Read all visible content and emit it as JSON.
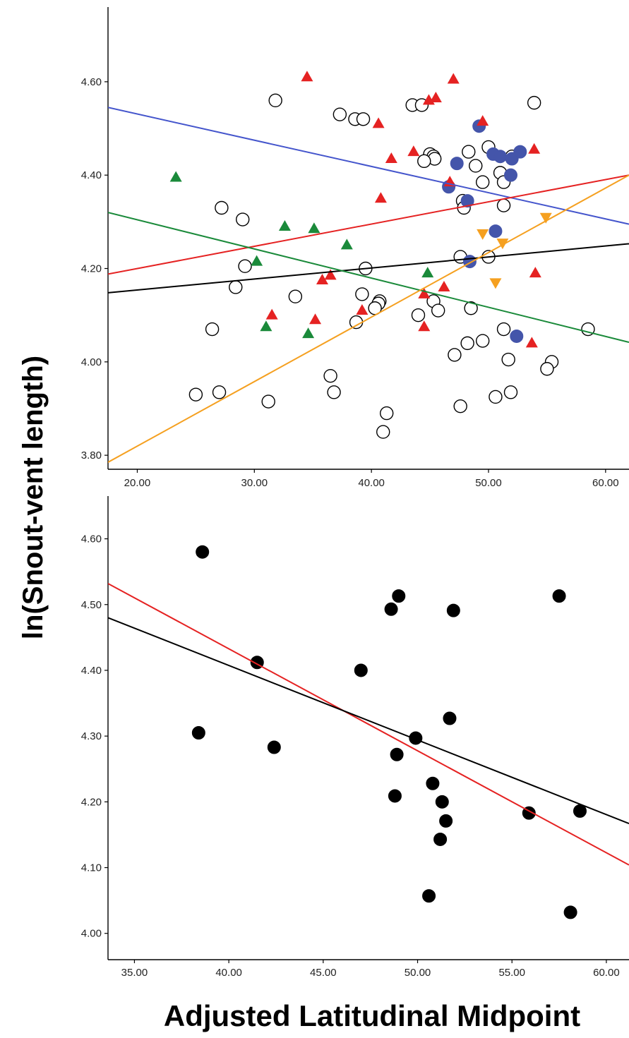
{
  "figure": {
    "ylabel": "ln(Snout-vent length)",
    "xlabel": "Adjusted Latitudinal Midpoint"
  },
  "chart_data": [
    {
      "type": "scatter",
      "title": "",
      "xlabel": "",
      "ylabel": "",
      "xlim": [
        17.5,
        62
      ],
      "ylim": [
        3.77,
        4.76
      ],
      "x_ticks": [
        "20.00",
        "30.00",
        "40.00",
        "50.00",
        "60.00"
      ],
      "y_ticks": [
        "3.80",
        "4.00",
        "4.20",
        "4.40",
        "4.60"
      ],
      "series": [
        {
          "marker": "open-circle",
          "color": "#000000",
          "points": [
            [
              31.8,
              4.56
            ],
            [
              37.3,
              4.53
            ],
            [
              38.6,
              4.52
            ],
            [
              39.3,
              4.52
            ],
            [
              43.5,
              4.55
            ],
            [
              44.3,
              4.55
            ],
            [
              53.9,
              4.555
            ],
            [
              45.0,
              4.445
            ],
            [
              45.3,
              4.44
            ],
            [
              45.4,
              4.435
            ],
            [
              44.5,
              4.43
            ],
            [
              48.3,
              4.45
            ],
            [
              50.0,
              4.46
            ],
            [
              48.9,
              4.42
            ],
            [
              51.0,
              4.405
            ],
            [
              52.0,
              4.44
            ],
            [
              49.5,
              4.385
            ],
            [
              51.3,
              4.385
            ],
            [
              47.8,
              4.345
            ],
            [
              47.9,
              4.33
            ],
            [
              51.3,
              4.335
            ],
            [
              27.2,
              4.33
            ],
            [
              29.0,
              4.305
            ],
            [
              29.2,
              4.205
            ],
            [
              28.4,
              4.16
            ],
            [
              47.6,
              4.225
            ],
            [
              50.0,
              4.225
            ],
            [
              39.5,
              4.2
            ],
            [
              33.5,
              4.14
            ],
            [
              39.2,
              4.145
            ],
            [
              40.7,
              4.13
            ],
            [
              40.6,
              4.125
            ],
            [
              40.3,
              4.115
            ],
            [
              45.3,
              4.13
            ],
            [
              45.7,
              4.11
            ],
            [
              48.5,
              4.115
            ],
            [
              38.7,
              4.085
            ],
            [
              44.0,
              4.1
            ],
            [
              26.4,
              4.07
            ],
            [
              51.3,
              4.07
            ],
            [
              58.5,
              4.07
            ],
            [
              47.1,
              4.015
            ],
            [
              48.2,
              4.04
            ],
            [
              49.5,
              4.045
            ],
            [
              51.7,
              4.005
            ],
            [
              55.4,
              4.0
            ],
            [
              55.0,
              3.985
            ],
            [
              36.5,
              3.97
            ],
            [
              25.0,
              3.93
            ],
            [
              27.0,
              3.935
            ],
            [
              36.8,
              3.935
            ],
            [
              31.2,
              3.915
            ],
            [
              47.6,
              3.905
            ],
            [
              50.6,
              3.925
            ],
            [
              51.9,
              3.935
            ],
            [
              41.3,
              3.89
            ],
            [
              41.0,
              3.85
            ]
          ]
        },
        {
          "marker": "filled-circle",
          "color": "#4455aa",
          "points": [
            [
              49.2,
              4.505
            ],
            [
              47.3,
              4.425
            ],
            [
              50.4,
              4.445
            ],
            [
              51.0,
              4.44
            ],
            [
              52.0,
              4.435
            ],
            [
              52.7,
              4.45
            ],
            [
              51.9,
              4.4
            ],
            [
              46.6,
              4.375
            ],
            [
              48.2,
              4.345
            ],
            [
              50.6,
              4.28
            ],
            [
              48.4,
              4.215
            ],
            [
              52.4,
              4.055
            ]
          ]
        },
        {
          "marker": "triangle-up",
          "color": "#e52222",
          "points": [
            [
              34.5,
              4.61
            ],
            [
              47.0,
              4.605
            ],
            [
              44.9,
              4.56
            ],
            [
              45.5,
              4.565
            ],
            [
              40.6,
              4.51
            ],
            [
              49.5,
              4.515
            ],
            [
              41.7,
              4.435
            ],
            [
              43.6,
              4.45
            ],
            [
              53.9,
              4.455
            ],
            [
              46.7,
              4.385
            ],
            [
              40.8,
              4.35
            ],
            [
              35.8,
              4.175
            ],
            [
              36.5,
              4.185
            ],
            [
              54.0,
              4.19
            ],
            [
              46.2,
              4.16
            ],
            [
              44.5,
              4.145
            ],
            [
              31.5,
              4.1
            ],
            [
              35.2,
              4.09
            ],
            [
              39.2,
              4.11
            ],
            [
              44.5,
              4.075
            ],
            [
              53.7,
              4.04
            ]
          ]
        },
        {
          "marker": "triangle-up",
          "color": "#1a8a3a",
          "points": [
            [
              23.3,
              4.395
            ],
            [
              32.6,
              4.29
            ],
            [
              35.1,
              4.285
            ],
            [
              37.9,
              4.25
            ],
            [
              30.2,
              4.215
            ],
            [
              44.8,
              4.19
            ],
            [
              31.0,
              4.075
            ],
            [
              34.6,
              4.06
            ]
          ]
        },
        {
          "marker": "triangle-down",
          "color": "#f5a020",
          "points": [
            [
              49.5,
              4.275
            ],
            [
              54.9,
              4.31
            ],
            [
              51.2,
              4.255
            ],
            [
              50.6,
              4.17
            ]
          ]
        }
      ],
      "fit_lines": [
        {
          "color": "#4455cc",
          "x": [
            17.5,
            62
          ],
          "y": [
            4.545,
            4.295
          ]
        },
        {
          "color": "#e52222",
          "x": [
            17.5,
            62
          ],
          "y": [
            4.188,
            4.4
          ]
        },
        {
          "color": "#000000",
          "x": [
            17.5,
            62
          ],
          "y": [
            4.148,
            4.253
          ]
        },
        {
          "color": "#1a8a3a",
          "x": [
            17.5,
            62
          ],
          "y": [
            4.32,
            4.042
          ]
        },
        {
          "color": "#f5a020",
          "x": [
            17.5,
            62
          ],
          "y": [
            3.785,
            4.4
          ]
        }
      ],
      "grid": false
    },
    {
      "type": "scatter",
      "title": "",
      "xlabel": "",
      "ylabel": "",
      "xlim": [
        33.6,
        61.2
      ],
      "ylim": [
        3.96,
        4.665
      ],
      "x_ticks": [
        "35.00",
        "40.00",
        "45.00",
        "50.00",
        "55.00",
        "60.00"
      ],
      "y_ticks": [
        "4.00",
        "4.10",
        "4.20",
        "4.30",
        "4.40",
        "4.50",
        "4.60"
      ],
      "series": [
        {
          "marker": "filled-circle",
          "color": "#000000",
          "points": [
            [
              38.6,
              4.58
            ],
            [
              41.5,
              4.412
            ],
            [
              38.4,
              4.305
            ],
            [
              42.4,
              4.283
            ],
            [
              47.0,
              4.4
            ],
            [
              48.6,
              4.493
            ],
            [
              49.0,
              4.513
            ],
            [
              51.9,
              4.491
            ],
            [
              57.5,
              4.513
            ],
            [
              49.9,
              4.297
            ],
            [
              51.7,
              4.327
            ],
            [
              48.9,
              4.272
            ],
            [
              50.8,
              4.228
            ],
            [
              48.8,
              4.209
            ],
            [
              51.3,
              4.2
            ],
            [
              51.5,
              4.171
            ],
            [
              51.2,
              4.143
            ],
            [
              55.9,
              4.183
            ],
            [
              58.6,
              4.186
            ],
            [
              50.6,
              4.057
            ],
            [
              58.1,
              4.032
            ]
          ]
        }
      ],
      "fit_lines": [
        {
          "color": "#e52222",
          "x": [
            33.6,
            61.2
          ],
          "y": [
            4.532,
            4.104
          ]
        },
        {
          "color": "#000000",
          "x": [
            33.6,
            61.2
          ],
          "y": [
            4.48,
            4.167
          ]
        }
      ],
      "grid": false
    }
  ]
}
